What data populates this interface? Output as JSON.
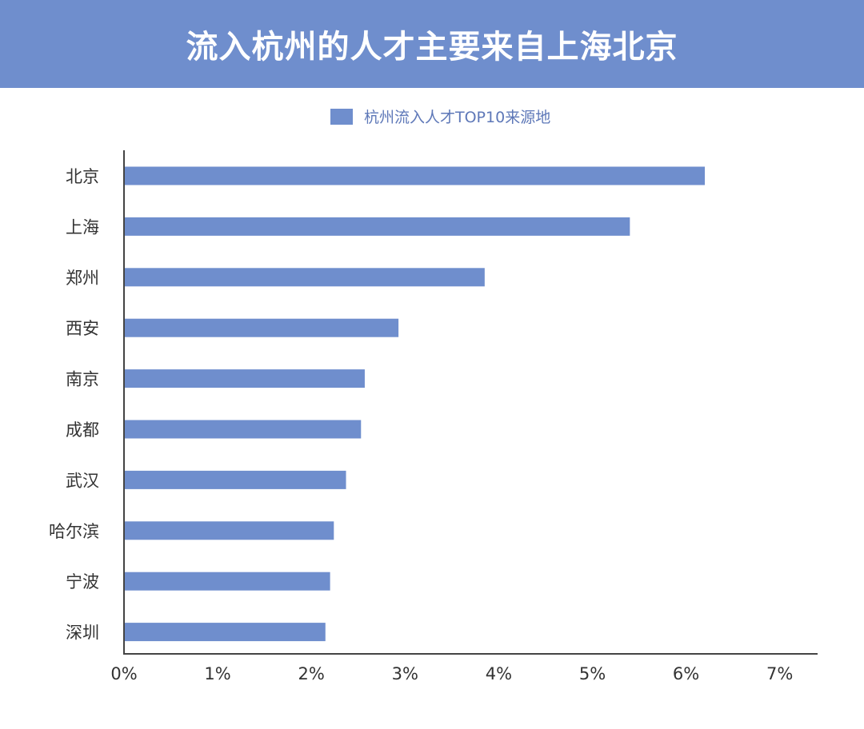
{
  "header": {
    "title": "流入杭州的人才主要来自上海北京"
  },
  "colors": {
    "banner": "#6f8ecd",
    "bar": "#6f8ecd",
    "axis": "#444444"
  },
  "chart_data": {
    "type": "bar",
    "orientation": "horizontal",
    "title": "流入杭州的人才主要来自上海北京",
    "xlabel": "",
    "ylabel": "",
    "xlim": [
      0,
      7
    ],
    "x_ticks": [
      "0%",
      "1%",
      "2%",
      "3%",
      "4%",
      "5%",
      "6%",
      "7%"
    ],
    "legend_position": "top-center",
    "grid": false,
    "categories": [
      "北京",
      "上海",
      "郑州",
      "西安",
      "南京",
      "成都",
      "武汉",
      "哈尔滨",
      "宁波",
      "深圳"
    ],
    "series": [
      {
        "name": "杭州流入人才TOP10来源地",
        "values": [
          6.2,
          5.4,
          3.85,
          2.93,
          2.57,
          2.53,
          2.37,
          2.24,
          2.2,
          2.15
        ]
      }
    ]
  }
}
